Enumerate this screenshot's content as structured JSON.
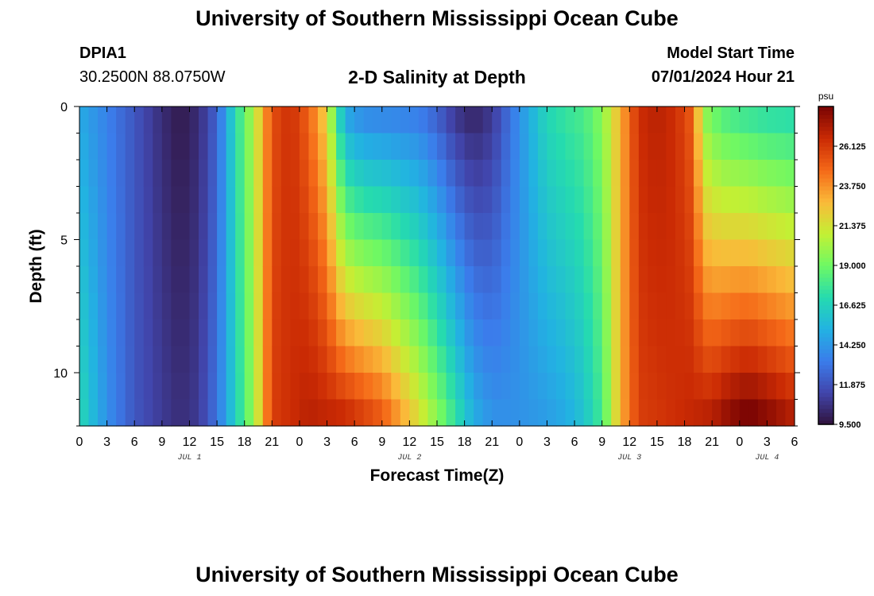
{
  "header": {
    "title": "University of Southern Mississippi Ocean Cube",
    "station": "DPIA1",
    "coordinates": "30.2500N  88.0750W",
    "plot_title": "2-D Salinity at Depth",
    "model_start_label": "Model Start Time",
    "model_start_value": "07/01/2024 Hour 21"
  },
  "footer": {
    "title": "University of Southern Mississippi Ocean Cube"
  },
  "chart_data": {
    "type": "heatmap",
    "title": "2-D Salinity at Depth",
    "xlabel": "Forecast Time(Z)",
    "ylabel": "Depth (ft)",
    "x_tick_labels": [
      "0",
      "3",
      "6",
      "9",
      "12",
      "15",
      "18",
      "21",
      "0",
      "3",
      "6",
      "9",
      "12",
      "15",
      "18",
      "21",
      "0",
      "3",
      "6",
      "9",
      "12",
      "15",
      "18",
      "21",
      "0",
      "3",
      "6"
    ],
    "date_labels": [
      {
        "label": "JUL 1",
        "hour": 12
      },
      {
        "label": "JUL 2",
        "hour": 36
      },
      {
        "label": "JUL 3",
        "hour": 60
      },
      {
        "label": "JUL 4",
        "hour": 75
      }
    ],
    "xlim": [
      0,
      78
    ],
    "y_ticks": [
      0,
      5,
      10
    ],
    "ylim": [
      0,
      12
    ],
    "y_inverted": true,
    "colorbar": {
      "unit": "psu",
      "ticks": [
        "9.500",
        "11.875",
        "14.250",
        "16.625",
        "19.000",
        "21.375",
        "23.750",
        "26.125"
      ],
      "range": [
        9.5,
        28.5
      ]
    },
    "depth_levels": [
      0.5,
      1.5,
      2.5,
      3.5,
      4.5,
      5.5,
      6.5,
      7.5,
      8.5,
      9.5,
      10.5,
      11.5
    ],
    "surface_profile": {
      "hours": [
        0,
        3,
        6,
        9,
        11,
        13,
        15,
        17,
        19,
        21,
        23,
        25,
        27,
        28,
        29,
        31,
        34,
        37,
        39,
        41,
        43,
        45,
        47,
        49,
        51,
        53,
        55,
        57,
        59,
        61,
        63,
        65,
        67,
        68,
        70,
        72,
        75,
        78
      ],
      "salinity": [
        15.0,
        13.5,
        12.0,
        10.5,
        9.8,
        10.5,
        12.5,
        17.0,
        20.5,
        25.5,
        26.5,
        25.0,
        22.0,
        18.0,
        15.0,
        14.0,
        13.8,
        13.5,
        12.5,
        11.0,
        10.3,
        11.0,
        13.0,
        15.0,
        16.8,
        17.5,
        18.0,
        19.5,
        23.0,
        26.5,
        27.0,
        26.5,
        25.0,
        20.0,
        18.5,
        18.0,
        17.5,
        17.3
      ]
    },
    "bottom_profile": {
      "hours": [
        0,
        3,
        6,
        9,
        11,
        13,
        15,
        17,
        19,
        21,
        25,
        29,
        33,
        37,
        40,
        43,
        45,
        47,
        49,
        51,
        53,
        55,
        57,
        59,
        61,
        65,
        69,
        71,
        73,
        75,
        78
      ],
      "salinity": [
        17.0,
        14.0,
        12.0,
        11.0,
        10.5,
        11.0,
        13.0,
        16.5,
        20.0,
        26.0,
        27.0,
        26.5,
        25.0,
        21.5,
        18.5,
        15.0,
        14.0,
        14.0,
        14.2,
        14.5,
        15.0,
        16.0,
        18.0,
        23.0,
        26.0,
        26.5,
        27.0,
        28.0,
        28.5,
        28.0,
        27.0
      ]
    }
  }
}
